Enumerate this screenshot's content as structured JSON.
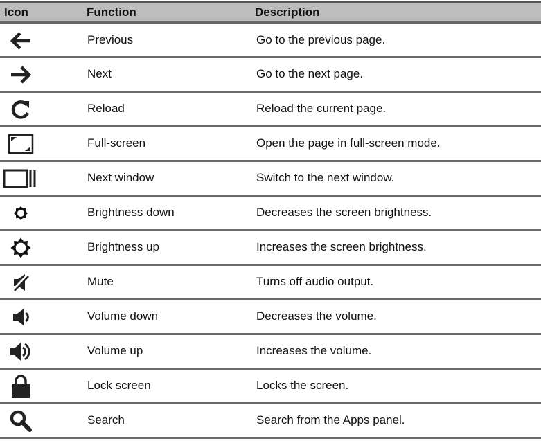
{
  "headers": {
    "icon": "Icon",
    "function": "Function",
    "description": "Description"
  },
  "rows": [
    {
      "icon": "arrow-left-icon",
      "function": "Previous",
      "description": "Go to the previous page."
    },
    {
      "icon": "arrow-right-icon",
      "function": "Next",
      "description": "Go to the next page."
    },
    {
      "icon": "reload-icon",
      "function": "Reload",
      "description": "Reload the current page."
    },
    {
      "icon": "fullscreen-icon",
      "function": "Full-screen",
      "description": "Open the page in full-screen mode."
    },
    {
      "icon": "next-window-icon",
      "function": "Next window",
      "description": "Switch to the next window."
    },
    {
      "icon": "brightness-down-icon",
      "function": "Brightness down",
      "description": "Decreases the screen brightness."
    },
    {
      "icon": "brightness-up-icon",
      "function": "Brightness up",
      "description": "Increases the screen brightness."
    },
    {
      "icon": "mute-icon",
      "function": "Mute",
      "description": "Turns off audio output."
    },
    {
      "icon": "volume-down-icon",
      "function": "Volume down",
      "description": "Decreases the volume."
    },
    {
      "icon": "volume-up-icon",
      "function": "Volume up",
      "description": "Increases the volume."
    },
    {
      "icon": "lock-icon",
      "function": "Lock screen",
      "description": "Locks the screen."
    },
    {
      "icon": "search-icon",
      "function": "Search",
      "description": "Search from the Apps panel."
    }
  ]
}
